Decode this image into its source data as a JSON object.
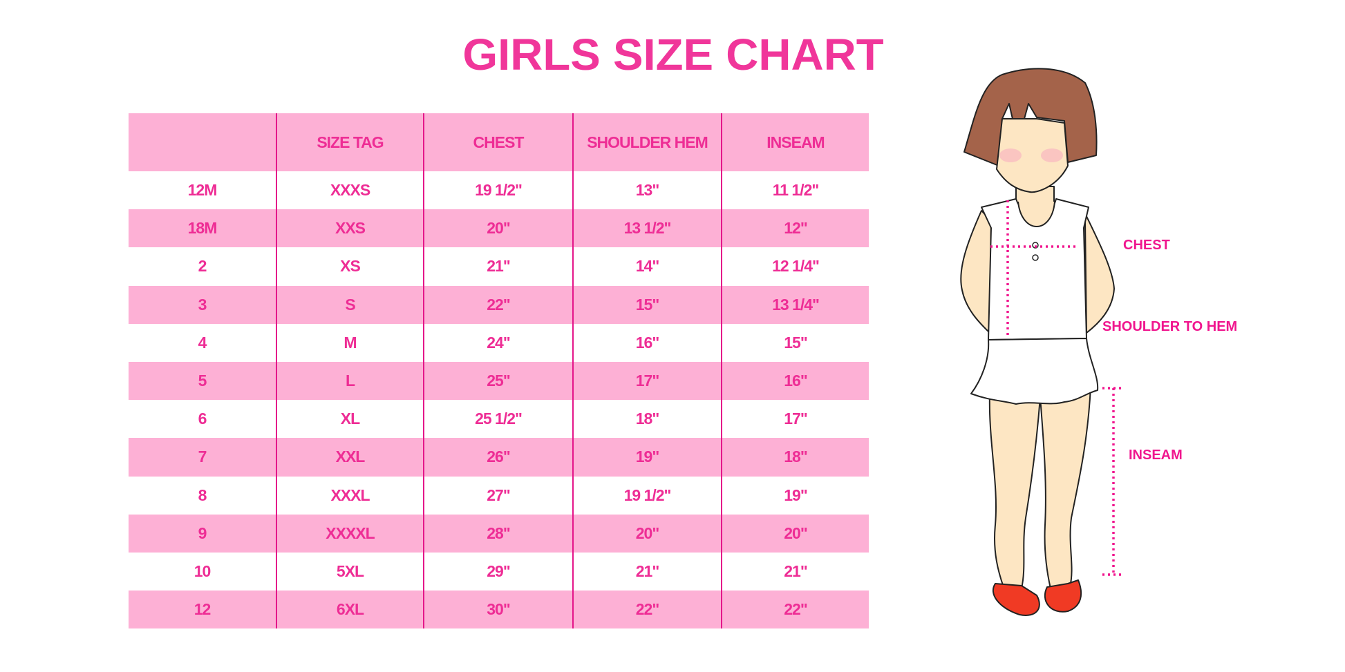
{
  "title": "GIRLS SIZE CHART",
  "colors": {
    "accent": "#f0369a",
    "header_bg": "#fdb0d5",
    "divider": "#e4168a",
    "hair": "#a4634a",
    "skin": "#fde6c3",
    "shoes": "#f03a24"
  },
  "table": {
    "headers": [
      "",
      "SIZE TAG",
      "CHEST",
      "SHOULDER HEM",
      "INSEAM"
    ],
    "rows": [
      [
        "12M",
        "XXXS",
        "19 1/2\"",
        "13\"",
        "11 1/2\""
      ],
      [
        "18M",
        "XXS",
        "20\"",
        "13 1/2\"",
        "12\""
      ],
      [
        "2",
        "XS",
        "21\"",
        "14\"",
        "12 1/4\""
      ],
      [
        "3",
        "S",
        "22\"",
        "15\"",
        "13 1/4\""
      ],
      [
        "4",
        "M",
        "24\"",
        "16\"",
        "15\""
      ],
      [
        "5",
        "L",
        "25\"",
        "17\"",
        "16\""
      ],
      [
        "6",
        "XL",
        "25 1/2\"",
        "18\"",
        "17\""
      ],
      [
        "7",
        "XXL",
        "26\"",
        "19\"",
        "18\""
      ],
      [
        "8",
        "XXXL",
        "27\"",
        "19 1/2\"",
        "19\""
      ],
      [
        "9",
        "XXXXL",
        "28\"",
        "20\"",
        "20\""
      ],
      [
        "10",
        "5XL",
        "29\"",
        "21\"",
        "21\""
      ],
      [
        "12",
        "6XL",
        "30\"",
        "22\"",
        "22\""
      ]
    ]
  },
  "figure": {
    "labels": {
      "chest": "CHEST",
      "shoulder": "SHOULDER TO HEM",
      "inseam": "INSEAM"
    }
  }
}
